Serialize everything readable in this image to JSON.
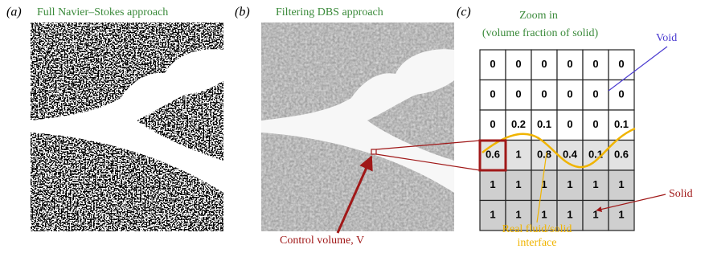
{
  "panels": [
    {
      "label": "(a)",
      "title": "Full Navier–Stokes approach"
    },
    {
      "label": "(b)",
      "title": "Filtering DBS approach"
    },
    {
      "label": "(c)",
      "title": [
        "Zoom in",
        "(volume fraction of solid)"
      ]
    }
  ],
  "grid": {
    "rows": [
      [
        0,
        0,
        0,
        0,
        0,
        0
      ],
      [
        0,
        0,
        0,
        0,
        0,
        0
      ],
      [
        0,
        0.2,
        0.1,
        0,
        0,
        0.1
      ],
      [
        0.6,
        1,
        0.8,
        0.4,
        0.1,
        0.6
      ],
      [
        1,
        1,
        1,
        1,
        1,
        1
      ],
      [
        1,
        1,
        1,
        1,
        1,
        1
      ]
    ]
  },
  "annotations": {
    "void": "Void",
    "solid": "Solid",
    "interface": [
      "Real fluid/solid",
      "interface"
    ],
    "control_volume": "Control volume, V"
  }
}
